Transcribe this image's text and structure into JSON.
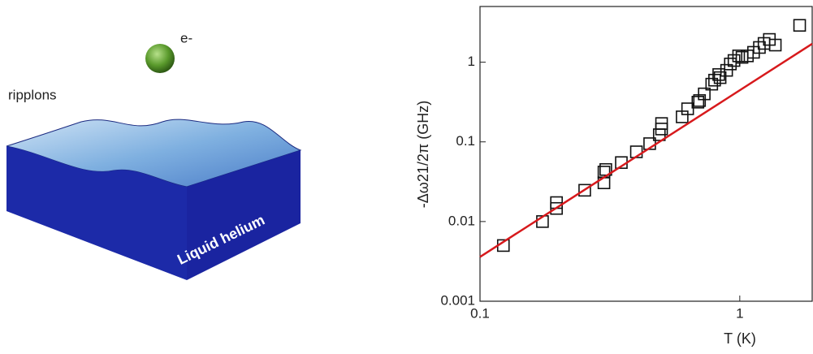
{
  "illustration": {
    "particle_label": "e-",
    "surface_label": "ripplons",
    "liquid_label": "Liquid helium"
  },
  "chart_data": {
    "type": "scatter",
    "x_label": "T (K)",
    "y_label": "-Δω21/2π (GHz)",
    "x_scale": "log",
    "y_scale": "log",
    "xlim": [
      0.1,
      1.9
    ],
    "ylim": [
      0.001,
      5
    ],
    "xticks": [
      0.1,
      1
    ],
    "yticks": [
      0.001,
      0.01,
      0.1,
      1
    ],
    "series": [
      {
        "color": "#111111",
        "x": [
          0.123,
          0.174,
          0.197,
          0.197,
          0.253,
          0.3,
          0.3,
          0.305,
          0.35,
          0.4,
          0.45,
          0.49,
          0.5,
          0.5,
          0.6,
          0.63,
          0.69,
          0.7,
          0.73,
          0.78,
          0.8,
          0.83,
          0.84,
          0.89,
          0.92,
          0.95,
          0.99,
          1.02,
          1.07,
          1.13,
          1.19,
          1.24,
          1.3,
          1.37,
          1.7
        ],
        "values": [
          0.005,
          0.01,
          0.0146,
          0.0173,
          0.0247,
          0.0306,
          0.0418,
          0.045,
          0.055,
          0.075,
          0.095,
          0.123,
          0.145,
          0.17,
          0.206,
          0.26,
          0.315,
          0.33,
          0.4,
          0.53,
          0.595,
          0.7,
          0.64,
          0.79,
          0.95,
          1.05,
          1.2,
          1.15,
          1.2,
          1.33,
          1.53,
          1.72,
          1.93,
          1.64,
          2.9
        ]
      },
      {
        "type": "line",
        "color": "#d7191c",
        "x": [
          0.1,
          1.9
        ],
        "values": [
          0.0036,
          1.7
        ]
      }
    ]
  }
}
